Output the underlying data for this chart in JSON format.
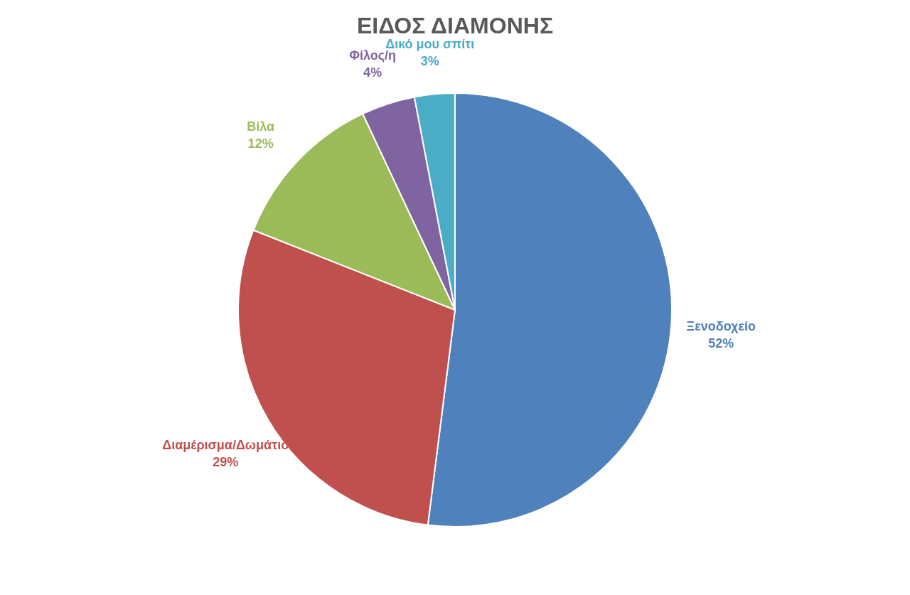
{
  "chart_data": {
    "type": "pie",
    "title": "ΕΙΔΟΣ ΔΙΑΜΟΝΗΣ",
    "categories": [
      "Ξενοδοχείο",
      "Διαμέρισμα/Δωμάτιο",
      "Βίλα",
      "Φίλος/η",
      "Δικό μου σπίτι"
    ],
    "values": [
      52,
      29,
      12,
      4,
      3
    ],
    "value_labels": [
      "52%",
      "29%",
      "12%",
      "4%",
      "3%"
    ],
    "colors": [
      "#4f81bd",
      "#c0504d",
      "#9bbb59",
      "#8064a2",
      "#4bacc6"
    ],
    "legend": false
  }
}
